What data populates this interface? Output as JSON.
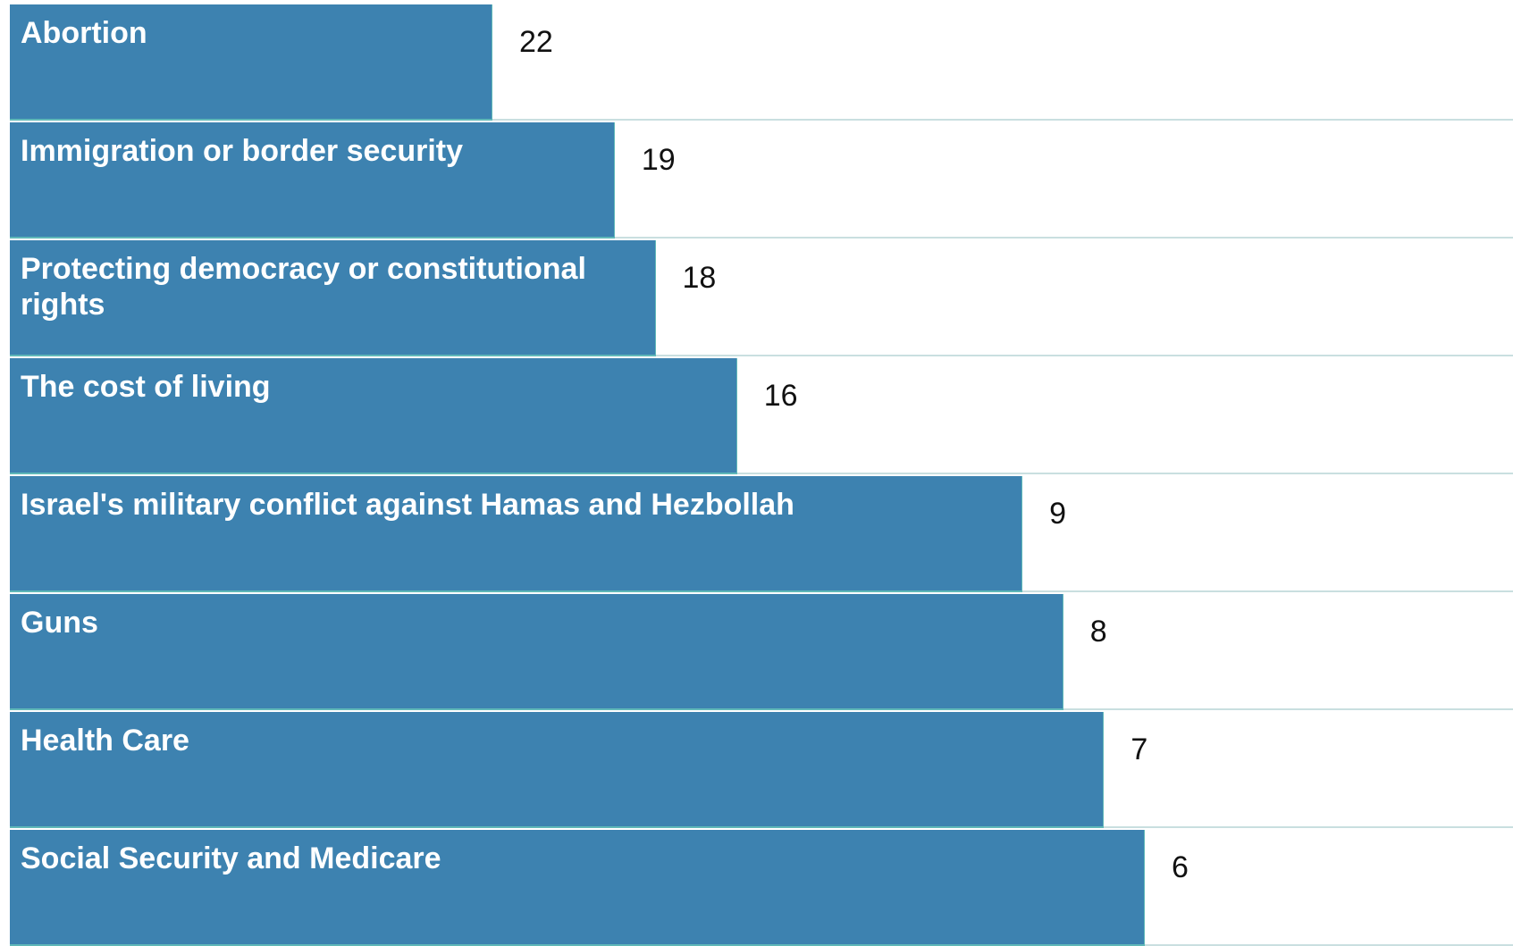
{
  "chart_data": {
    "type": "bar",
    "orientation": "horizontal",
    "categories": [
      "Abortion",
      "Immigration or border security",
      "Protecting democracy or constitutional rights",
      "The cost of living",
      "Israel's military conflict against Hamas and Hezbollah",
      "Guns",
      "Health Care",
      "Social Security and Medicare"
    ],
    "values": [
      22,
      19,
      18,
      16,
      9,
      8,
      7,
      6
    ],
    "colors": {
      "bar": "#3d82b0",
      "bar_edge": "#5fb8b8",
      "row_line": "#c9dfe0",
      "label_text": "#ffffff",
      "value_text": "#111111"
    }
  }
}
